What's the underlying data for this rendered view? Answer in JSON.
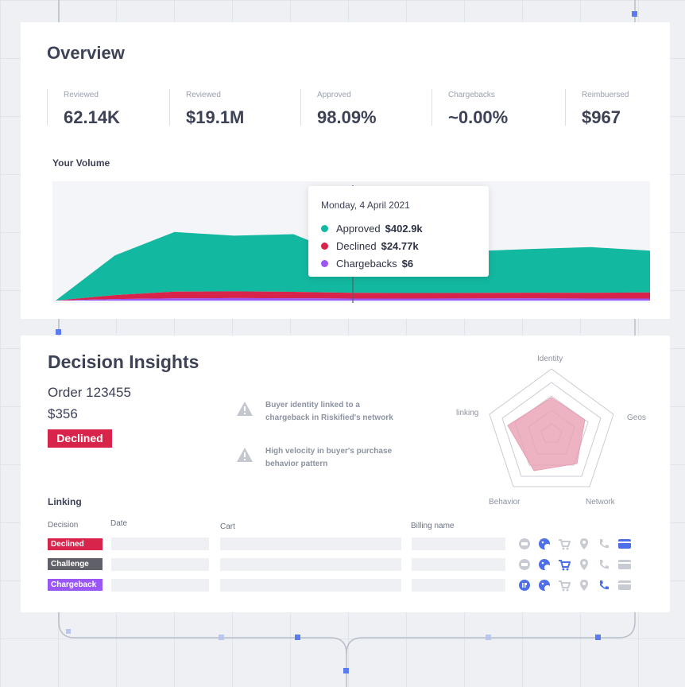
{
  "overview": {
    "title": "Overview",
    "metrics": [
      {
        "label": "Reviewed",
        "value": "62.14K"
      },
      {
        "label": "Reviewed",
        "value": "$19.1M"
      },
      {
        "label": "Approved",
        "value": "98.09%"
      },
      {
        "label": "Chargebacks",
        "value": "~0.00%"
      },
      {
        "label": "Reimbuersed",
        "value": "$967"
      }
    ],
    "volume_title": "Your Volume",
    "tooltip": {
      "date": "Monday, 4 April 2021",
      "rows": [
        {
          "label": "Approved",
          "value": "$402.9k",
          "color": "#13b8a0"
        },
        {
          "label": "Declined",
          "value": "$24.77k",
          "color": "#d8244a"
        },
        {
          "label": "Chargebacks",
          "value": "$6",
          "color": "#9a57f5"
        }
      ]
    }
  },
  "chart_data": {
    "type": "area",
    "title": "Your Volume",
    "stacked": true,
    "x": [
      0,
      1,
      2,
      3,
      4,
      5,
      6,
      7,
      8,
      9,
      10
    ],
    "series": [
      {
        "name": "Chargebacks",
        "color": "#9a57f5",
        "values": [
          0,
          1.5,
          2.2,
          2.5,
          2.3,
          2.0,
          2.0,
          2.1,
          2.2,
          2.0,
          2.0
        ]
      },
      {
        "name": "Declined",
        "color": "#d8244a",
        "values": [
          0,
          4.0,
          6.8,
          6.8,
          6.5,
          5.8,
          5.6,
          5.6,
          5.7,
          5.8,
          6.2
        ]
      },
      {
        "name": "Approved",
        "color": "#13b8a0",
        "values": [
          0,
          40,
          60,
          56,
          58,
          35,
          38,
          42,
          44,
          46,
          42
        ]
      }
    ],
    "ylim": [
      0,
      120
    ],
    "hover_index": 5,
    "grid": false
  },
  "insights": {
    "title": "Decision Insights",
    "order_id": "Order 123455",
    "order_amount": "$356",
    "order_status": "Declined",
    "alerts": [
      {
        "line1": "Buyer identity linked to a",
        "line2": "chargeback in Riskified's network"
      },
      {
        "line1": "High velocity in buyer's purchase",
        "line2": "behavior pattern"
      }
    ],
    "radar": {
      "axes": [
        "Identity",
        "Geos",
        "Network",
        "Behavior",
        "linking"
      ]
    },
    "linking": {
      "title": "Linking",
      "columns": [
        "Decision",
        "Date",
        "Cart",
        "Billing name"
      ],
      "rows": [
        {
          "tag": "Declined",
          "color": "#d8244a"
        },
        {
          "tag": "Challenge",
          "color": "#5f6068"
        },
        {
          "tag": "Chargeback",
          "color": "#9a57f5"
        }
      ],
      "icons": [
        "email-icon",
        "cookie-icon",
        "cart-icon",
        "location-icon",
        "phone-icon",
        "card-icon"
      ]
    }
  }
}
